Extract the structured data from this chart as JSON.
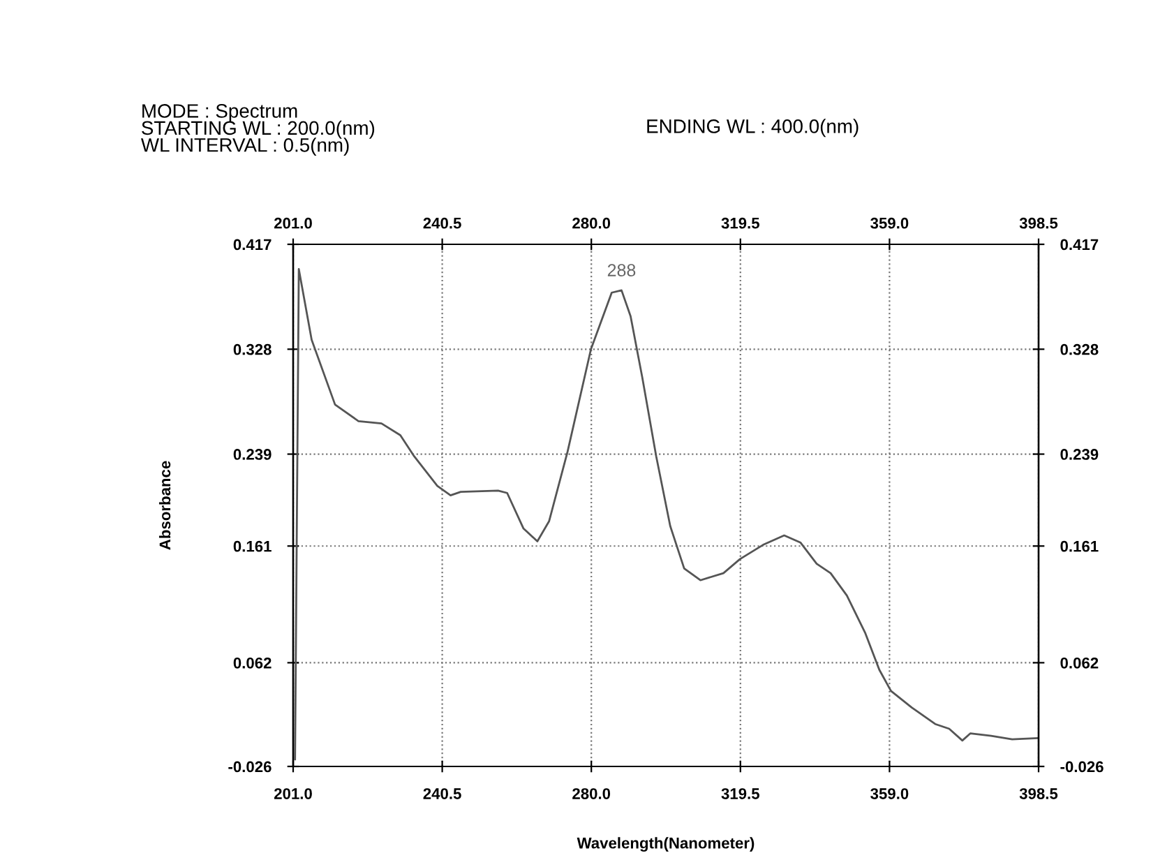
{
  "chart_data": {
    "type": "line",
    "xlabel": "Wavelength(Nanometer)",
    "ylabel": "Absorbance",
    "annotations": [
      "MODE : Spectrum",
      "STARTING WL : 200.0(nm)",
      "WL INTERVAL : 0.5(nm)",
      "ENDING WL : 400.0(nm)",
      {
        "text": "288",
        "x": 288,
        "y": 0.377
      }
    ],
    "x": [
      201.5,
      202.5,
      205.9,
      212.1,
      218.3,
      224.4,
      229.4,
      233.1,
      239.2,
      242.7,
      245.4,
      255.3,
      257.7,
      262.0,
      265.7,
      268.8,
      273.7,
      279.9,
      285.4,
      288.0,
      290.4,
      293.5,
      297.2,
      300.9,
      304.6,
      308.9,
      315.0,
      319.4,
      325.5,
      331.1,
      335.4,
      339.7,
      343.4,
      347.7,
      352.6,
      356.3,
      359.4,
      364.9,
      371.1,
      374.8,
      378.3,
      380.4,
      385.9,
      391.5,
      398.2
    ],
    "series": [
      {
        "color": "#555555",
        "values": [
          -0.02,
          0.396,
          0.336,
          0.281,
          0.267,
          0.265,
          0.255,
          0.237,
          0.212,
          0.204,
          0.207,
          0.208,
          0.206,
          0.176,
          0.165,
          0.182,
          0.241,
          0.328,
          0.376,
          0.378,
          0.356,
          0.304,
          0.237,
          0.178,
          0.142,
          0.132,
          0.138,
          0.15,
          0.162,
          0.17,
          0.164,
          0.146,
          0.138,
          0.119,
          0.087,
          0.056,
          0.038,
          0.024,
          0.01,
          0.006,
          -0.004,
          0.002,
          0.0,
          -0.003,
          -0.002
        ]
      }
    ],
    "xlim": [
      201.0,
      398.5
    ],
    "xticks": [
      {
        "value": 201,
        "label": "201.0"
      },
      240.5,
      {
        "value": 280,
        "label": "280.0"
      },
      319.5,
      {
        "value": 359,
        "label": "359.0"
      },
      398.5
    ],
    "x2lim": [
      201.0,
      398.5
    ],
    "x2ticks": [
      {
        "value": 201,
        "label": "201.0"
      },
      240.5,
      {
        "value": 280,
        "label": "280.0"
      },
      319.5,
      {
        "value": 359,
        "label": "359.0"
      },
      398.5
    ],
    "ylim": [
      -0.026,
      0.417
    ],
    "yticks": [
      -0.026,
      0.062,
      0.161,
      0.239,
      0.328,
      0.417
    ],
    "y2lim": [
      -0.026,
      0.417
    ],
    "y2ticks": [
      -0.026,
      0.062,
      0.161,
      0.239,
      0.328,
      0.417
    ],
    "grid": true,
    "line_style": "solid",
    "marker": "none"
  }
}
